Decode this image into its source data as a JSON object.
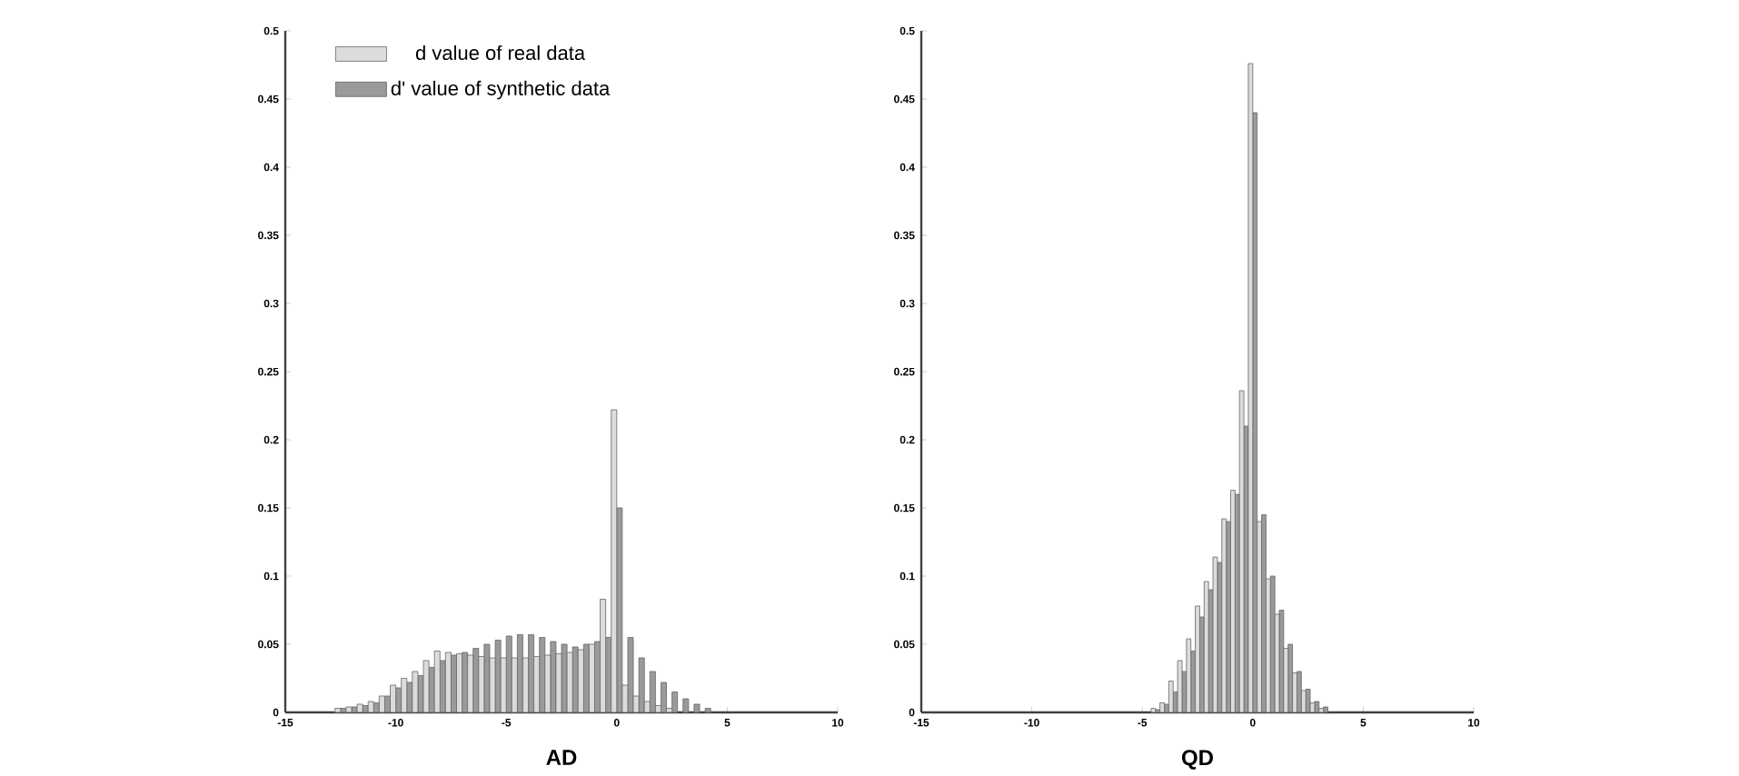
{
  "chart_data": [
    {
      "type": "histogram",
      "xlabel": "AD",
      "bins": [
        -12.75,
        -12.25,
        -11.75,
        -11.25,
        -10.75,
        -10.25,
        -9.75,
        -9.25,
        -8.75,
        -8.25,
        -7.75,
        -7.25,
        -6.75,
        -6.25,
        -5.75,
        -5.25,
        -4.75,
        -4.25,
        -3.75,
        -3.25,
        -2.75,
        -2.25,
        -1.75,
        -1.25,
        -0.75,
        -0.25,
        0.25,
        0.75,
        1.25,
        1.75,
        2.25,
        2.75,
        3.25,
        3.75,
        4.25
      ],
      "series": [
        {
          "name": "d value of real data",
          "color": "#dcdcdc",
          "values": [
            0.003,
            0.004,
            0.006,
            0.008,
            0.012,
            0.02,
            0.025,
            0.03,
            0.038,
            0.045,
            0.044,
            0.043,
            0.042,
            0.041,
            0.04,
            0.04,
            0.04,
            0.04,
            0.041,
            0.042,
            0.043,
            0.044,
            0.046,
            0.05,
            0.083,
            0.222,
            0.02,
            0.012,
            0.008,
            0.005,
            0.003,
            null,
            null,
            null
          ]
        },
        {
          "name": "d' value of synthetic data",
          "color": "#9a9a9a",
          "values": [
            0.003,
            0.004,
            0.005,
            0.007,
            0.012,
            0.018,
            0.022,
            0.027,
            0.033,
            0.038,
            0.042,
            0.044,
            0.047,
            0.05,
            0.053,
            0.056,
            0.057,
            0.057,
            0.055,
            0.052,
            0.05,
            0.048,
            0.05,
            0.052,
            0.055,
            0.15,
            0.055,
            0.04,
            0.03,
            0.022,
            0.015,
            0.01,
            0.006,
            0.003
          ]
        }
      ],
      "xlim": [
        -15,
        10
      ],
      "ylim": [
        0,
        0.5
      ],
      "xticks": [
        -15,
        -10,
        -5,
        0,
        5,
        10
      ],
      "yticks": [
        0,
        0.05,
        0.1,
        0.15,
        0.2,
        0.25,
        0.3,
        0.35,
        0.4,
        0.45,
        0.5
      ],
      "legend": "top left"
    },
    {
      "type": "histogram",
      "xlabel": "QD",
      "bins": [
        -4.6,
        -4.2,
        -3.8,
        -3.4,
        -3.0,
        -2.6,
        -2.2,
        -1.8,
        -1.4,
        -1.0,
        -0.6,
        -0.2,
        0.2,
        0.6,
        1.0,
        1.4,
        1.8,
        2.2,
        2.6,
        3.0,
        3.4
      ],
      "series": [
        {
          "color": "#dcdcdc",
          "values": [
            0.003,
            0.007,
            0.023,
            0.038,
            0.054,
            0.078,
            0.096,
            0.114,
            0.142,
            0.163,
            0.236,
            0.476,
            0.14,
            0.098,
            0.072,
            0.047,
            0.029,
            0.016,
            0.007,
            0.003
          ]
        },
        {
          "color": "#9a9a9a",
          "values": [
            0.002,
            0.006,
            0.015,
            0.03,
            0.045,
            0.07,
            0.09,
            0.11,
            0.14,
            0.16,
            0.21,
            0.44,
            0.145,
            0.1,
            0.075,
            0.05,
            0.03,
            0.017,
            0.008,
            0.004
          ]
        }
      ],
      "xlim": [
        -15,
        10
      ],
      "ylim": [
        0,
        0.5
      ],
      "xticks": [
        -15,
        -10,
        -5,
        0,
        5,
        10
      ],
      "yticks": [
        0,
        0.05,
        0.1,
        0.15,
        0.2,
        0.25,
        0.3,
        0.35,
        0.4,
        0.45,
        0.5
      ]
    }
  ]
}
